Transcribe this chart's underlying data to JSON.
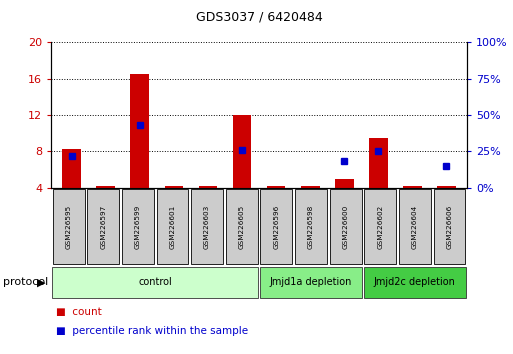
{
  "title": "GDS3037 / 6420484",
  "samples": [
    "GSM226595",
    "GSM226597",
    "GSM226599",
    "GSM226601",
    "GSM226603",
    "GSM226605",
    "GSM226596",
    "GSM226598",
    "GSM226600",
    "GSM226602",
    "GSM226604",
    "GSM226606"
  ],
  "counts": [
    8.3,
    4.2,
    16.5,
    4.2,
    4.2,
    12.0,
    4.2,
    4.2,
    5.0,
    9.5,
    4.2,
    4.2
  ],
  "percentile_ranks": [
    22,
    null,
    43,
    null,
    null,
    26,
    null,
    null,
    18,
    25,
    null,
    15
  ],
  "ylim_left": [
    4,
    20
  ],
  "ylim_right": [
    0,
    100
  ],
  "yticks_left": [
    4,
    8,
    12,
    16,
    20
  ],
  "yticks_right": [
    0,
    25,
    50,
    75,
    100
  ],
  "bar_color": "#cc0000",
  "dot_color": "#0000cc",
  "grid_color": "#000000",
  "groups": [
    {
      "label": "control",
      "start": 0,
      "end": 5,
      "color": "#ccffcc"
    },
    {
      "label": "Jmjd1a depletion",
      "start": 6,
      "end": 8,
      "color": "#88ee88"
    },
    {
      "label": "Jmjd2c depletion",
      "start": 9,
      "end": 11,
      "color": "#44cc44"
    }
  ],
  "protocol_label": "protocol",
  "legend_count_label": "count",
  "legend_pct_label": "percentile rank within the sample",
  "bar_color_legend": "#cc0000",
  "dot_color_legend": "#0000cc",
  "left_axis_color": "#cc0000",
  "right_axis_color": "#0000cc",
  "sample_box_color": "#cccccc",
  "bar_width": 0.55,
  "fig_width": 5.13,
  "fig_height": 3.54,
  "dpi": 100
}
